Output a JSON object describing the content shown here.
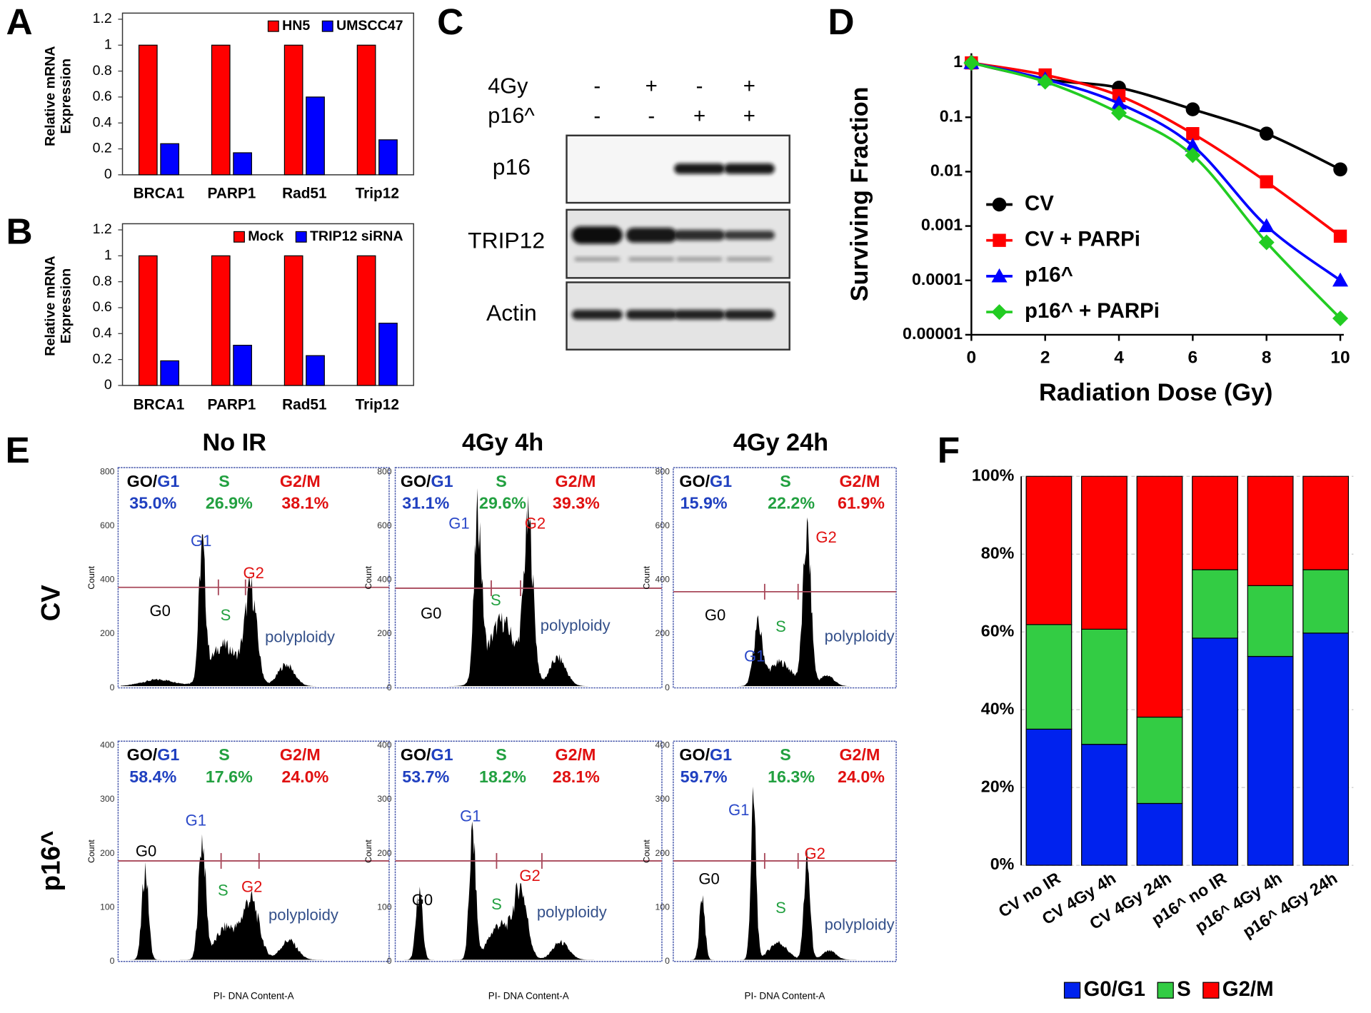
{
  "panel_labels": [
    "A",
    "B",
    "C",
    "D",
    "E",
    "F"
  ],
  "chart_data": [
    {
      "type": "bar",
      "categories": [
        "BRCA1",
        "PARP1",
        "Rad51",
        "Trip12"
      ],
      "series": [
        {
          "name": "HN5",
          "color": "#ff0000",
          "values": [
            1,
            1,
            1,
            1
          ]
        },
        {
          "name": "UMSCC47",
          "color": "#0000ff",
          "values": [
            0.24,
            0.17,
            0.6,
            0.27
          ]
        }
      ],
      "ylabel": [
        "Relative mRNA",
        "Expression"
      ],
      "ylim": [
        0,
        1.2
      ],
      "yticks": [
        0,
        0.2,
        0.4,
        0.6,
        0.8,
        1,
        1.2
      ],
      "legend": "upper right"
    },
    {
      "type": "bar",
      "categories": [
        "BRCA1",
        "PARP1",
        "Rad51",
        "Trip12"
      ],
      "series": [
        {
          "name": "Mock",
          "color": "#ff0000",
          "values": [
            1,
            1,
            1,
            1
          ]
        },
        {
          "name": "TRIP12 siRNA",
          "color": "#0000ff",
          "values": [
            0.19,
            0.31,
            0.23,
            0.48
          ]
        }
      ],
      "ylabel": [
        "Relative mRNA",
        "Expression"
      ],
      "ylim": [
        0,
        1.2
      ],
      "yticks": [
        0,
        0.2,
        0.4,
        0.6,
        0.8,
        1,
        1.2
      ],
      "legend": "upper right"
    },
    {
      "type": "line",
      "x": [
        0,
        2,
        4,
        6,
        8,
        10
      ],
      "series": [
        {
          "name": "CV",
          "color": "#000000",
          "marker": "circle",
          "values": [
            1,
            0.5,
            0.35,
            0.14,
            0.05,
            0.011
          ]
        },
        {
          "name": "CV + PARPi",
          "color": "#ff0000",
          "marker": "square",
          "values": [
            1,
            0.6,
            0.25,
            0.05,
            0.0065,
            0.00065
          ]
        },
        {
          "name": "p16^",
          "color": "#0000ff",
          "marker": "triangle",
          "values": [
            1,
            0.5,
            0.18,
            0.03,
            0.001,
            0.0001
          ]
        },
        {
          "name": "p16^ + PARPi",
          "color": "#22cc22",
          "marker": "diamond",
          "values": [
            1,
            0.45,
            0.12,
            0.02,
            0.0005,
            2e-05
          ]
        }
      ],
      "xlabel": "Radiation Dose (Gy)",
      "ylabel": "Surviving Fraction",
      "xlim": [
        0,
        10
      ],
      "xticks": [
        0,
        2,
        4,
        6,
        8,
        10
      ],
      "ylim": [
        1e-05,
        1.5
      ],
      "yticks": [
        1e-05,
        0.0001,
        0.001,
        0.01,
        0.1,
        1
      ],
      "yscale": "log",
      "legend": "lower left"
    },
    {
      "type": "stacked_bar",
      "categories": [
        "CV no IR",
        "CV 4Gy 4h",
        "CV 4Gy 24h",
        "p16^ no IR",
        "p16^ 4Gy 4h",
        "p16^ 4Gy 24h"
      ],
      "series": [
        {
          "name": "G0/G1",
          "color": "#0022ee",
          "values": [
            35.0,
            31.1,
            15.9,
            58.4,
            53.7,
            59.7
          ]
        },
        {
          "name": "S",
          "color": "#33cc44",
          "values": [
            26.9,
            29.6,
            22.2,
            17.6,
            18.2,
            16.3
          ]
        },
        {
          "name": "G2/M",
          "color": "#ff0000",
          "values": [
            38.1,
            39.3,
            61.9,
            24.0,
            28.1,
            24.0
          ]
        }
      ],
      "ylim": [
        0,
        100
      ],
      "yticks": [
        {
          "value": 0,
          "label": "0%"
        },
        {
          "value": 20,
          "label": "20%"
        },
        {
          "value": 40,
          "label": "40%"
        },
        {
          "value": 60,
          "label": "60%"
        },
        {
          "value": 80,
          "label": "80%"
        },
        {
          "value": 100,
          "label": "100%"
        }
      ],
      "grid": true,
      "legend": "bottom"
    }
  ],
  "western_blot": {
    "conditions": [
      {
        "name": "4Gy",
        "signs": [
          "-",
          "+",
          "-",
          "+"
        ]
      },
      {
        "name": "p16^",
        "signs": [
          "-",
          "-",
          "+",
          "+"
        ]
      }
    ],
    "bands": [
      "p16",
      "TRIP12",
      "Actin"
    ]
  },
  "flow_cytometry": {
    "columns": [
      "No IR",
      "4Gy 4h",
      "4Gy 24h"
    ],
    "header": {
      "go": "GO/",
      "g1": "G1",
      "s": "S",
      "g2m": "G2/M"
    },
    "peak_labels": {
      "g0": "G0",
      "g1": "G1",
      "s": "S",
      "g2": "G2",
      "polyploidy": "polyploidy"
    },
    "count_label": "Count",
    "x_label": "PI- DNA Content-A",
    "rows": [
      {
        "label": "CV",
        "ylim": [
          0,
          800
        ],
        "yticks": [
          0,
          200,
          400,
          600,
          800
        ],
        "panels": [
          {
            "g0g1": "35.0%",
            "s": "26.9%",
            "g2m": "38.1%"
          },
          {
            "g0g1": "31.1%",
            "s": "29.6%",
            "g2m": "39.3%"
          },
          {
            "g0g1": "15.9%",
            "s": "22.2%",
            "g2m": "61.9%"
          }
        ]
      },
      {
        "label": "p16^",
        "ylim": [
          0,
          400
        ],
        "yticks": [
          0,
          100,
          200,
          300,
          400
        ],
        "panels": [
          {
            "g0g1": "58.4%",
            "s": "17.6%",
            "g2m": "24.0%"
          },
          {
            "g0g1": "53.7%",
            "s": "18.2%",
            "g2m": "28.1%"
          },
          {
            "g0g1": "59.7%",
            "s": "16.3%",
            "g2m": "24.0%"
          }
        ]
      }
    ]
  }
}
